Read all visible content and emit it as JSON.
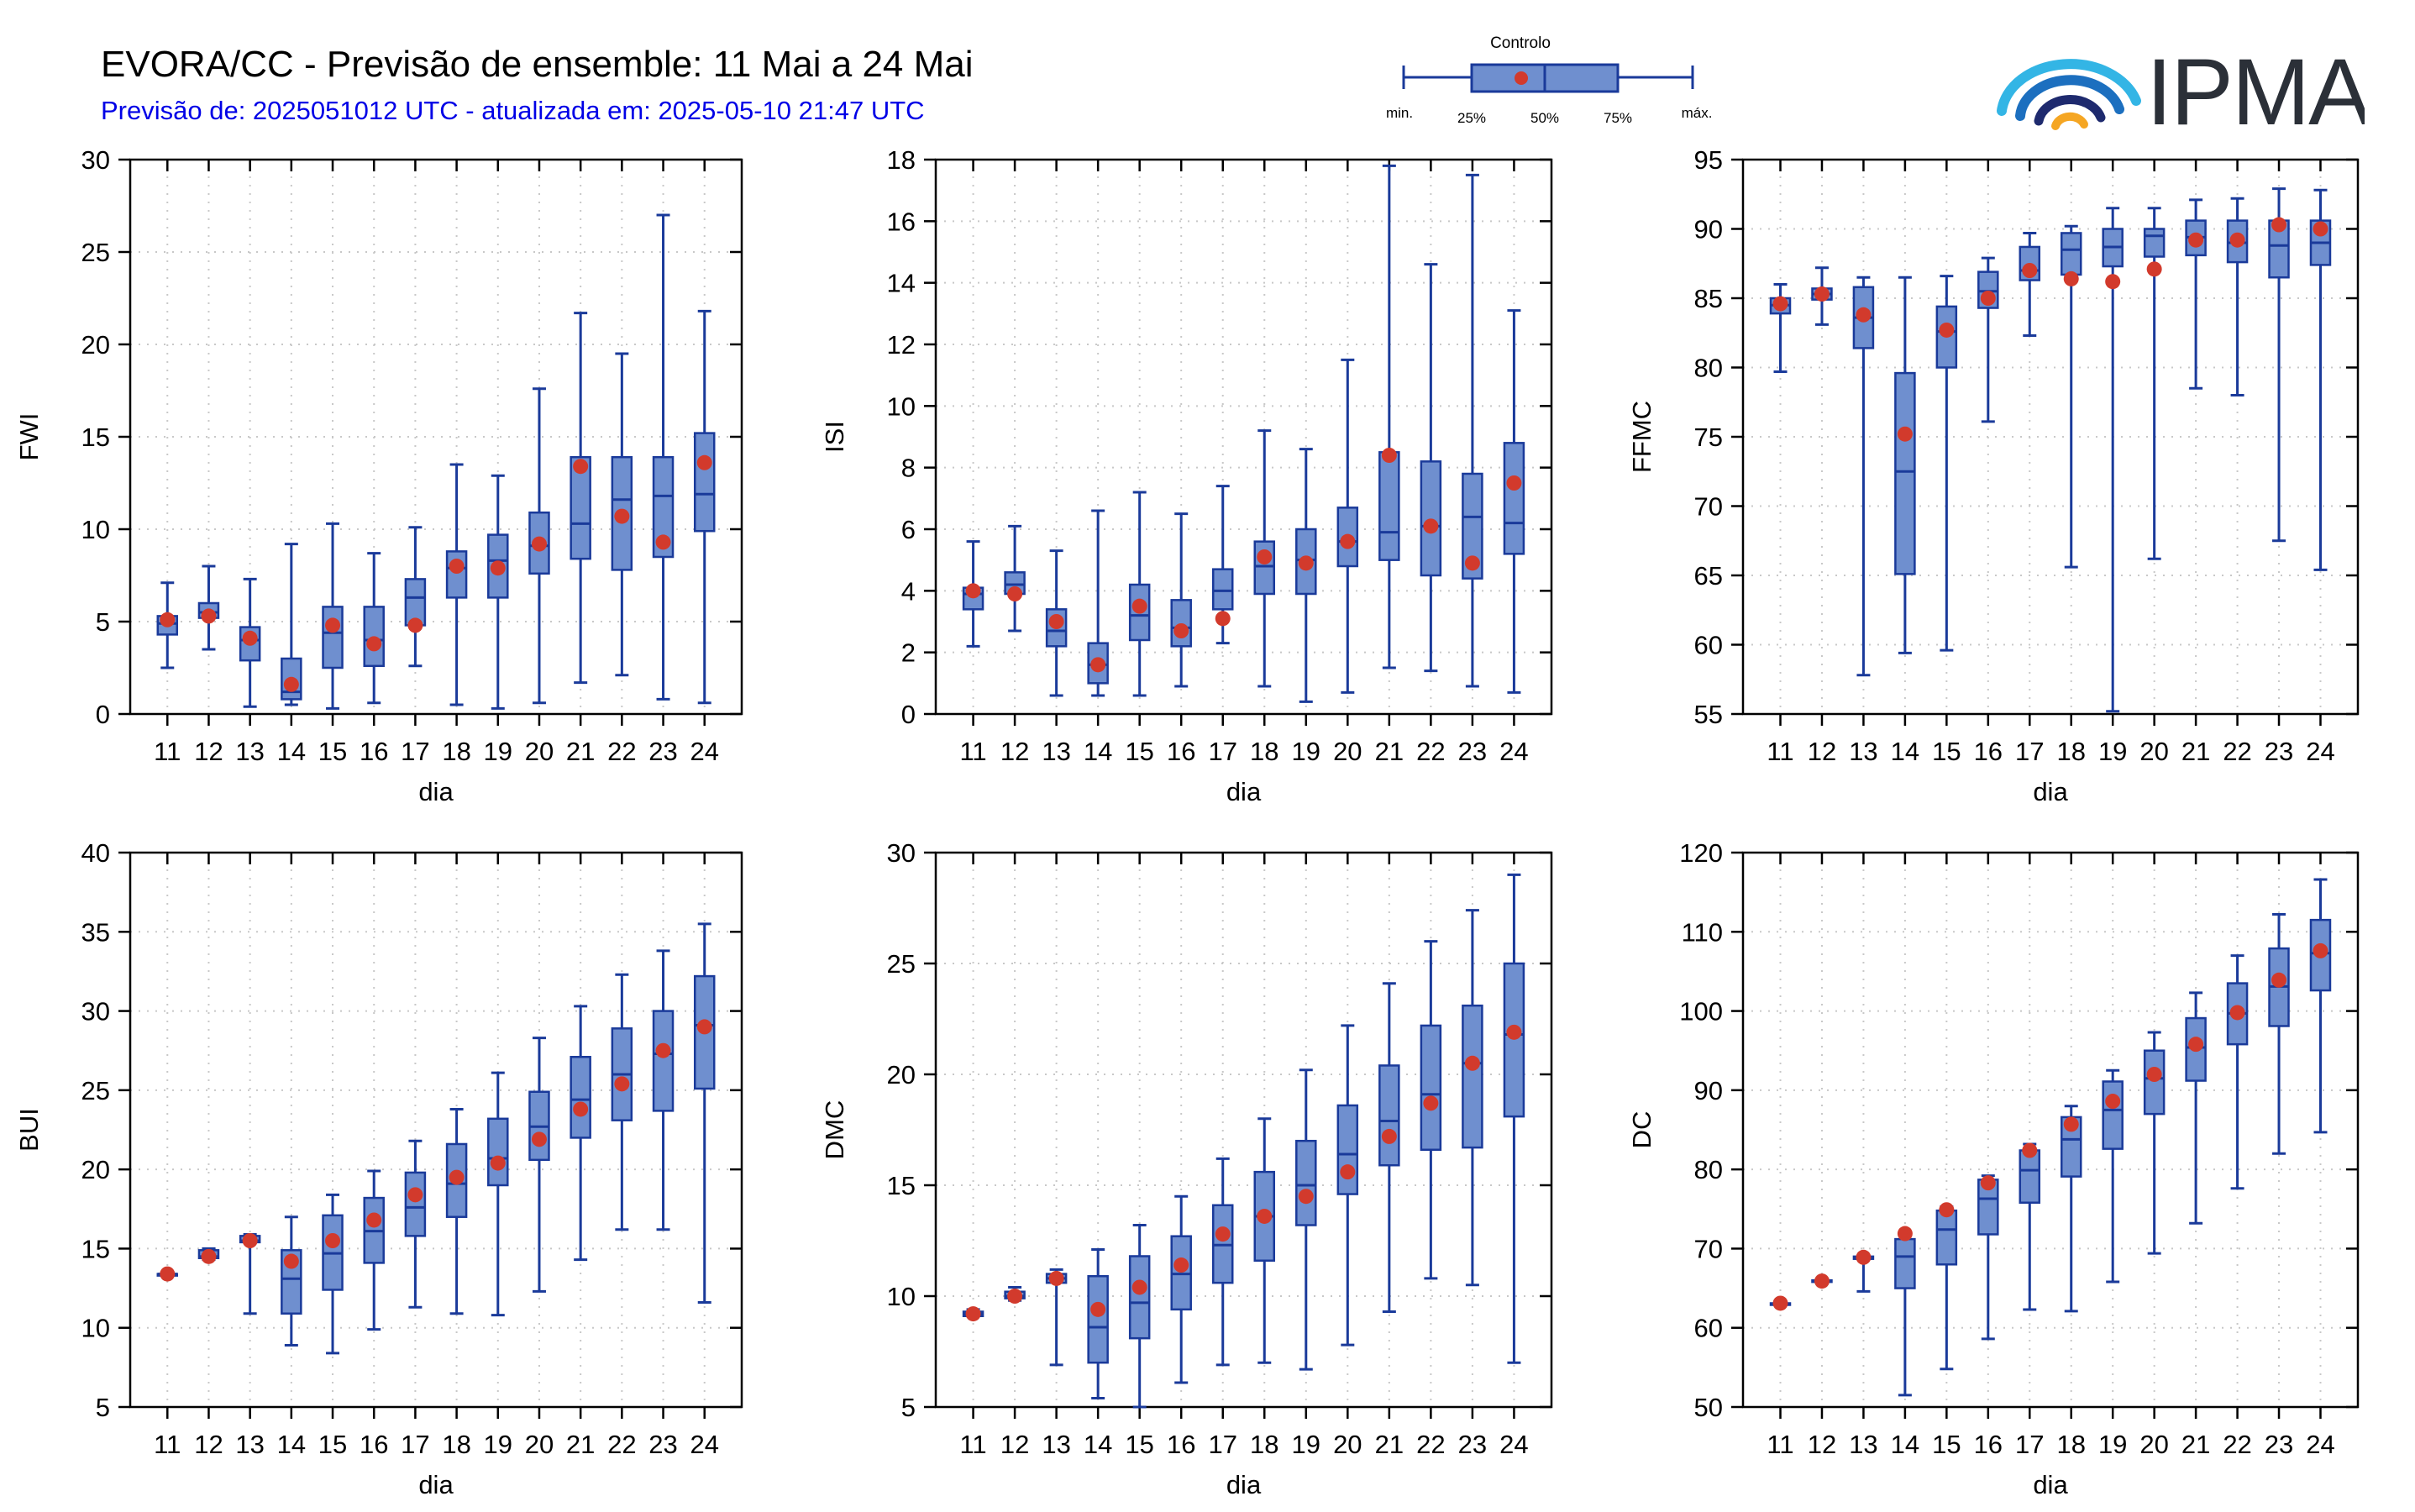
{
  "header": {
    "title": "EVORA/CC - Previsão de ensemble: 11 Mai a 24 Mai",
    "subtitle": "Previsão de: 2025051012 UTC - atualizada em: 2025-05-10 21:47 UTC"
  },
  "legend": {
    "title": "Controlo",
    "min": "min.",
    "p25": "25%",
    "p50": "50%",
    "p75": "75%",
    "max": "máx."
  },
  "logo": {
    "text": "IPMA"
  },
  "colors": {
    "box_fill": "#6f8fcf",
    "box_edge": "#1a3a9a",
    "control": "#d23a2c",
    "grid": "#c8c8c8"
  },
  "chart_data": [
    {
      "type": "box",
      "xlabel": "dia",
      "ylabel": "FWI",
      "categories": [
        "11",
        "12",
        "13",
        "14",
        "15",
        "16",
        "17",
        "18",
        "19",
        "20",
        "21",
        "22",
        "23",
        "24"
      ],
      "ylim": [
        0,
        30
      ],
      "yticks": [
        0,
        5,
        10,
        15,
        20,
        25,
        30
      ],
      "min": [
        2.5,
        3.5,
        0.4,
        0.5,
        0.3,
        0.6,
        2.6,
        0.5,
        0.3,
        0.6,
        1.7,
        2.1,
        0.8,
        0.6
      ],
      "q1": [
        4.3,
        5.2,
        2.9,
        0.8,
        2.5,
        2.6,
        4.8,
        6.3,
        6.3,
        7.6,
        8.4,
        7.8,
        8.5,
        9.9
      ],
      "median": [
        4.9,
        5.5,
        4.0,
        1.2,
        4.4,
        4.0,
        6.3,
        7.9,
        8.3,
        9.1,
        10.3,
        11.6,
        11.8,
        11.9
      ],
      "q3": [
        5.3,
        6.0,
        4.7,
        3.0,
        5.8,
        5.8,
        7.3,
        8.8,
        9.7,
        10.9,
        13.9,
        13.9,
        13.9,
        15.2
      ],
      "max": [
        7.1,
        8.0,
        7.3,
        9.2,
        10.3,
        8.7,
        10.1,
        13.5,
        12.9,
        17.6,
        21.7,
        19.5,
        27.0,
        21.8
      ],
      "control": [
        5.1,
        5.3,
        4.1,
        1.6,
        4.8,
        3.8,
        4.8,
        8.0,
        7.9,
        9.2,
        13.4,
        10.7,
        9.3,
        13.6
      ]
    },
    {
      "type": "box",
      "xlabel": "dia",
      "ylabel": "ISI",
      "categories": [
        "11",
        "12",
        "13",
        "14",
        "15",
        "16",
        "17",
        "18",
        "19",
        "20",
        "21",
        "22",
        "23",
        "24"
      ],
      "ylim": [
        0,
        18
      ],
      "yticks": [
        0,
        2,
        4,
        6,
        8,
        10,
        12,
        14,
        16,
        18
      ],
      "min": [
        2.2,
        2.7,
        0.6,
        0.6,
        0.6,
        0.9,
        2.3,
        0.9,
        0.4,
        0.7,
        1.5,
        1.4,
        0.9,
        0.7
      ],
      "q1": [
        3.4,
        3.9,
        2.2,
        1.0,
        2.4,
        2.2,
        3.4,
        3.9,
        3.9,
        4.8,
        5.0,
        4.5,
        4.4,
        5.2
      ],
      "median": [
        3.9,
        4.2,
        2.7,
        1.6,
        3.2,
        2.8,
        4.0,
        4.8,
        5.0,
        5.6,
        5.9,
        6.1,
        6.4,
        6.2
      ],
      "q3": [
        4.1,
        4.6,
        3.4,
        2.3,
        4.2,
        3.7,
        4.7,
        5.6,
        6.0,
        6.7,
        8.5,
        8.2,
        7.8,
        8.8
      ],
      "max": [
        5.6,
        6.1,
        5.3,
        6.6,
        7.2,
        6.5,
        7.4,
        9.2,
        8.6,
        11.5,
        17.8,
        14.6,
        17.5,
        13.1
      ],
      "control": [
        4.0,
        3.9,
        3.0,
        1.6,
        3.5,
        2.7,
        3.1,
        5.1,
        4.9,
        5.6,
        8.4,
        6.1,
        4.9,
        7.5
      ]
    },
    {
      "type": "box",
      "xlabel": "dia",
      "ylabel": "FFMC",
      "categories": [
        "11",
        "12",
        "13",
        "14",
        "15",
        "16",
        "17",
        "18",
        "19",
        "20",
        "21",
        "22",
        "23",
        "24"
      ],
      "ylim": [
        55,
        95
      ],
      "yticks": [
        55,
        60,
        65,
        70,
        75,
        80,
        85,
        90,
        95
      ],
      "min": [
        79.7,
        83.1,
        57.8,
        59.4,
        59.6,
        76.1,
        82.3,
        65.6,
        55.2,
        66.2,
        78.5,
        78.0,
        67.5,
        65.4
      ],
      "q1": [
        83.9,
        84.9,
        81.4,
        65.1,
        80.0,
        84.3,
        86.3,
        86.7,
        87.3,
        88.0,
        88.1,
        87.6,
        86.5,
        87.4
      ],
      "median": [
        84.5,
        85.3,
        83.6,
        72.5,
        82.6,
        85.5,
        87.0,
        88.5,
        88.7,
        89.5,
        89.4,
        89.0,
        88.8,
        89.0
      ],
      "q3": [
        85.0,
        85.7,
        85.8,
        79.6,
        84.4,
        86.9,
        88.7,
        89.7,
        90.0,
        90.0,
        90.6,
        90.6,
        90.6,
        90.6
      ],
      "max": [
        86.0,
        87.2,
        86.5,
        86.5,
        86.6,
        87.9,
        89.7,
        90.2,
        91.5,
        91.5,
        92.1,
        92.2,
        92.9,
        92.8
      ],
      "control": [
        84.6,
        85.3,
        83.8,
        75.2,
        82.7,
        85.0,
        87.0,
        86.4,
        86.2,
        87.1,
        89.2,
        89.2,
        90.3,
        90.0
      ]
    },
    {
      "type": "box",
      "xlabel": "dia",
      "ylabel": "BUI",
      "categories": [
        "11",
        "12",
        "13",
        "14",
        "15",
        "16",
        "17",
        "18",
        "19",
        "20",
        "21",
        "22",
        "23",
        "24"
      ],
      "ylim": [
        5,
        40
      ],
      "yticks": [
        5,
        10,
        15,
        20,
        25,
        30,
        35,
        40
      ],
      "min": [
        13.4,
        14.3,
        10.9,
        8.9,
        8.4,
        9.9,
        11.3,
        10.9,
        10.8,
        12.3,
        14.3,
        16.2,
        16.2,
        11.6
      ],
      "q1": [
        13.4,
        14.4,
        15.4,
        10.9,
        12.4,
        14.1,
        15.8,
        17.0,
        19.0,
        20.6,
        22.0,
        23.1,
        23.7,
        25.1
      ],
      "median": [
        13.4,
        14.5,
        15.5,
        13.1,
        14.7,
        16.1,
        17.6,
        19.1,
        20.7,
        22.7,
        24.4,
        26.0,
        27.3,
        29.1
      ],
      "q3": [
        13.4,
        14.9,
        15.8,
        14.9,
        17.1,
        18.2,
        19.8,
        21.6,
        23.2,
        24.9,
        27.1,
        28.9,
        30.0,
        32.2
      ],
      "max": [
        13.4,
        15.0,
        15.9,
        17.0,
        18.4,
        19.9,
        21.8,
        23.8,
        26.1,
        28.3,
        30.3,
        32.3,
        33.8,
        35.5
      ],
      "control": [
        13.4,
        14.5,
        15.5,
        14.2,
        15.5,
        16.8,
        18.4,
        19.5,
        20.4,
        21.9,
        23.8,
        25.4,
        27.5,
        29.0
      ]
    },
    {
      "type": "box",
      "xlabel": "dia",
      "ylabel": "DMC",
      "categories": [
        "11",
        "12",
        "13",
        "14",
        "15",
        "16",
        "17",
        "18",
        "19",
        "20",
        "21",
        "22",
        "23",
        "24"
      ],
      "ylim": [
        5,
        30
      ],
      "yticks": [
        5,
        10,
        15,
        20,
        25,
        30
      ],
      "min": [
        9.1,
        9.8,
        6.9,
        5.4,
        5.0,
        6.1,
        6.9,
        7.0,
        6.7,
        7.8,
        9.3,
        10.8,
        10.5,
        7.0
      ],
      "q1": [
        9.1,
        9.9,
        10.6,
        7.0,
        8.1,
        9.4,
        10.6,
        11.6,
        13.2,
        14.6,
        15.9,
        16.6,
        16.7,
        18.1
      ],
      "median": [
        9.2,
        10.0,
        10.8,
        8.6,
        9.7,
        11.0,
        12.3,
        13.6,
        15.0,
        16.4,
        17.9,
        19.1,
        20.5,
        21.8
      ],
      "q3": [
        9.3,
        10.2,
        11.0,
        10.9,
        11.8,
        12.7,
        14.1,
        15.6,
        17.0,
        18.6,
        20.4,
        22.2,
        23.1,
        25.0
      ],
      "max": [
        9.4,
        10.4,
        11.2,
        12.1,
        13.2,
        14.5,
        16.2,
        18.0,
        20.2,
        22.2,
        24.1,
        26.0,
        27.4,
        29.0
      ],
      "control": [
        9.2,
        10.0,
        10.8,
        9.4,
        10.4,
        11.4,
        12.8,
        13.6,
        14.5,
        15.6,
        17.2,
        18.7,
        20.5,
        21.9
      ]
    },
    {
      "type": "box",
      "xlabel": "dia",
      "ylabel": "DC",
      "categories": [
        "11",
        "12",
        "13",
        "14",
        "15",
        "16",
        "17",
        "18",
        "19",
        "20",
        "21",
        "22",
        "23",
        "24"
      ],
      "ylim": [
        50,
        120
      ],
      "yticks": [
        50,
        60,
        70,
        80,
        90,
        100,
        110,
        120
      ],
      "min": [
        63.0,
        65.6,
        64.6,
        51.5,
        54.8,
        58.6,
        62.3,
        62.1,
        65.8,
        69.4,
        73.2,
        77.6,
        82.0,
        84.7
      ],
      "q1": [
        63.0,
        65.8,
        68.7,
        65.0,
        68.0,
        71.8,
        75.8,
        79.1,
        82.6,
        87.0,
        91.2,
        95.8,
        98.1,
        102.6
      ],
      "median": [
        63.0,
        65.9,
        68.8,
        69.0,
        72.4,
        76.3,
        79.9,
        83.8,
        87.5,
        91.5,
        95.4,
        99.7,
        103.1,
        107.3
      ],
      "q3": [
        63.1,
        66.0,
        69.0,
        71.2,
        74.8,
        78.7,
        82.4,
        86.6,
        91.1,
        95.0,
        99.1,
        103.5,
        107.9,
        111.5
      ],
      "max": [
        63.1,
        66.1,
        69.1,
        72.0,
        75.3,
        79.2,
        83.2,
        88.0,
        92.5,
        97.3,
        102.3,
        107.0,
        112.2,
        116.6
      ],
      "control": [
        63.1,
        65.9,
        68.9,
        71.9,
        74.9,
        78.3,
        82.4,
        85.7,
        88.6,
        92.0,
        95.8,
        99.8,
        103.9,
        107.6
      ]
    }
  ]
}
